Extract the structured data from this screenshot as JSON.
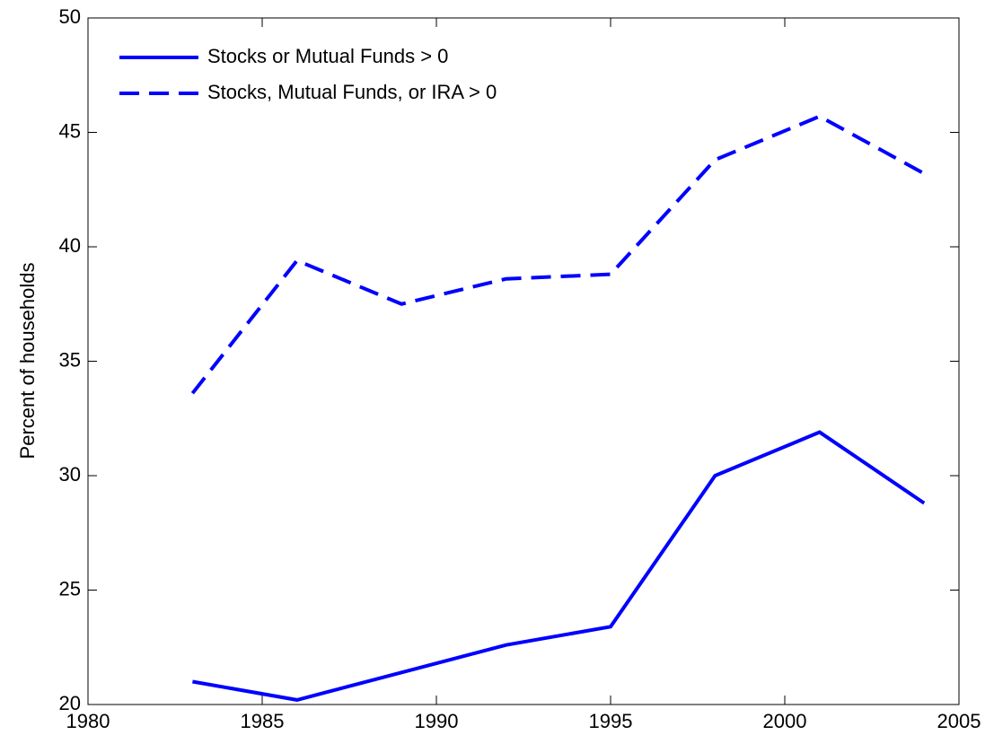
{
  "chart_data": {
    "type": "line",
    "y_label": "Percent of households",
    "x": [
      1983,
      1986,
      1989,
      1992,
      1995,
      1998,
      2001,
      2004
    ],
    "series": [
      {
        "name": "Stocks or Mutual Funds > 0",
        "color": "#0000ff",
        "dash": "solid",
        "values": [
          21.0,
          20.2,
          21.4,
          22.6,
          23.4,
          30.0,
          31.9,
          28.8
        ]
      },
      {
        "name": "Stocks, Mutual Funds, or IRA > 0",
        "color": "#0000ff",
        "dash": "dashed",
        "values": [
          33.6,
          39.4,
          37.5,
          38.6,
          38.8,
          43.8,
          45.7,
          43.2
        ]
      }
    ],
    "xlim": [
      1980,
      2005
    ],
    "xticks": [
      1980,
      1985,
      1990,
      1995,
      2000,
      2005
    ],
    "ylim": [
      20,
      50
    ],
    "yticks": [
      20,
      25,
      30,
      35,
      40,
      45,
      50
    ],
    "grid": false,
    "legend": "upper-left"
  }
}
